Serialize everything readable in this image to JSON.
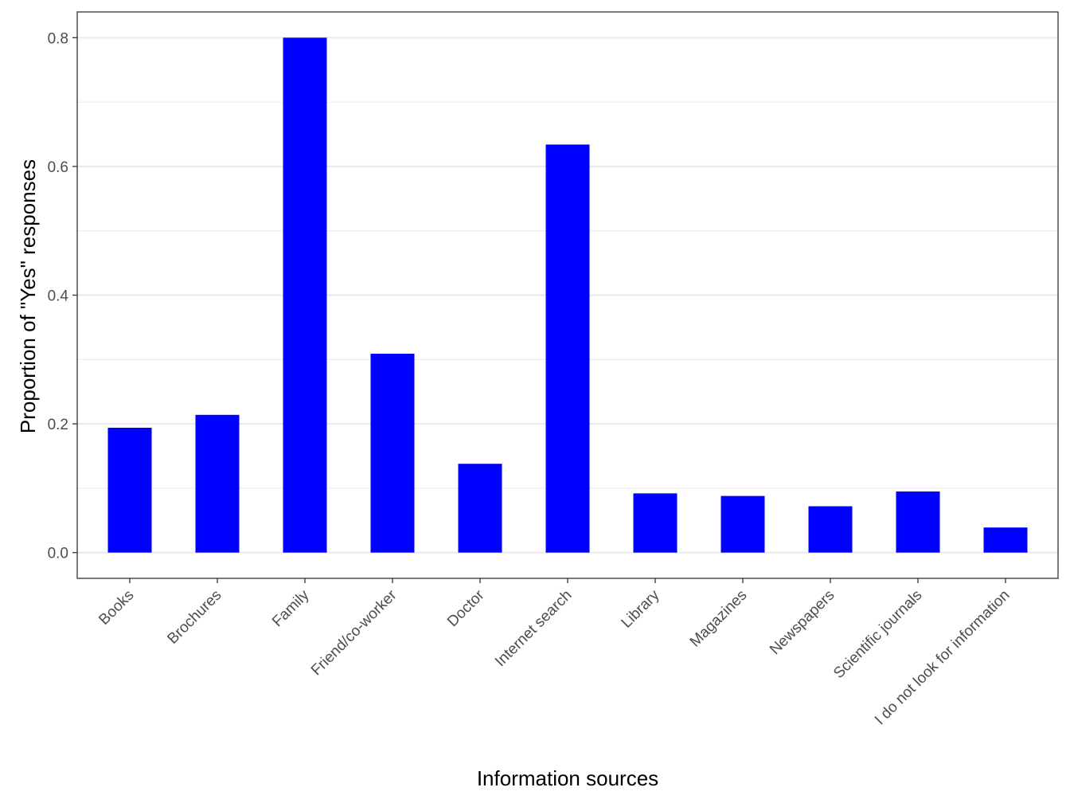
{
  "chart_data": {
    "type": "bar",
    "title": "",
    "xlabel": "Information sources",
    "ylabel": "Proportion of \"Yes\" responses",
    "categories": [
      "Books",
      "Brochures",
      "Family",
      "Friend/co-worker",
      "Doctor",
      "Internet search",
      "Library",
      "Magazines",
      "Newspapers",
      "Scientific journals",
      "I do not look for information"
    ],
    "values": [
      0.194,
      0.214,
      0.8,
      0.309,
      0.138,
      0.634,
      0.092,
      0.088,
      0.072,
      0.095,
      0.039
    ],
    "ylim": [
      -0.04,
      0.84
    ],
    "yticks": [
      0.0,
      0.2,
      0.4,
      0.6,
      0.8
    ],
    "ytick_labels": [
      "0.0",
      "0.2",
      "0.4",
      "0.6",
      "0.8"
    ],
    "grid": true,
    "legend": "none",
    "bar_color": "#0000ff",
    "grid_color": "#ebebeb",
    "panel_border_color": "#333333"
  }
}
